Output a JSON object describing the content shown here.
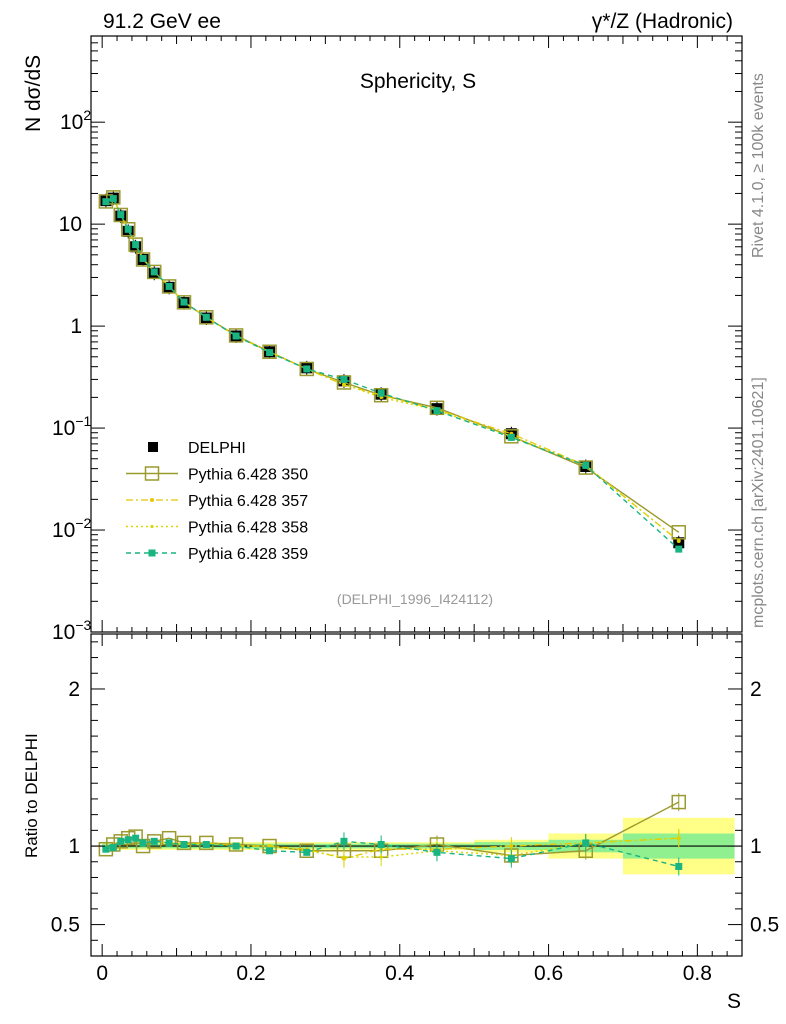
{
  "header": {
    "left_label": "91.2 GeV ee",
    "right_label": "γ*/Z (Hadronic)"
  },
  "side_labels": {
    "rivet": "Rivet 4.1.0, ≥ 100k events",
    "mcplots": "mcplots.cern.ch [arXiv:2401.10621]"
  },
  "colors": {
    "data": "#000000",
    "p350": "#9a9a2e",
    "p357": "#e6c800",
    "p358": "#d8d800",
    "p359": "#18b482",
    "band_yellow": "#ffff88",
    "band_green": "#90f090"
  },
  "chart_data": [
    {
      "type": "line",
      "title": "Sphericity, S",
      "ylabel": "N  dσ/dS",
      "yscale": "log",
      "xlim": [
        -0.015,
        0.86
      ],
      "ylim": [
        0.001,
        700
      ],
      "y_ticks": [
        {
          "value": 0.001,
          "base": "10",
          "exp": "−3"
        },
        {
          "value": 0.01,
          "base": "10",
          "exp": "−2"
        },
        {
          "value": 0.1,
          "base": "10",
          "exp": "−1"
        },
        {
          "value": 1,
          "base": "1",
          "exp": ""
        },
        {
          "value": 10,
          "base": "10",
          "exp": ""
        },
        {
          "value": 100,
          "base": "10",
          "exp": "2"
        }
      ],
      "reference_label": "(DELPHI_1996_I424112)",
      "x": [
        0.005,
        0.015,
        0.025,
        0.035,
        0.045,
        0.055,
        0.07,
        0.09,
        0.11,
        0.14,
        0.18,
        0.225,
        0.275,
        0.325,
        0.375,
        0.45,
        0.55,
        0.65,
        0.775
      ],
      "series": [
        {
          "name": "DELPHI",
          "style": "data",
          "values": [
            17.0,
            18.0,
            12.0,
            8.5,
            6.0,
            4.5,
            3.3,
            2.4,
            1.7,
            1.2,
            0.8,
            0.56,
            0.39,
            0.29,
            0.215,
            0.155,
            0.088,
            0.042,
            0.0075
          ]
        },
        {
          "name": "Pythia 6.428 350",
          "style": "open-square-solid",
          "values": [
            16.7,
            18.3,
            12.3,
            8.9,
            6.3,
            4.5,
            3.4,
            2.45,
            1.71,
            1.22,
            0.81,
            0.56,
            0.38,
            0.28,
            0.21,
            0.158,
            0.083,
            0.041,
            0.0095
          ]
        },
        {
          "name": "Pythia 6.428 357",
          "style": "dash-dot",
          "values": [
            16.8,
            17.8,
            12.4,
            8.8,
            6.2,
            4.6,
            3.4,
            2.45,
            1.72,
            1.22,
            0.8,
            0.56,
            0.38,
            0.265,
            0.21,
            0.152,
            0.088,
            0.043,
            0.0078
          ]
        },
        {
          "name": "Pythia 6.428 358",
          "style": "dotted",
          "values": [
            16.9,
            17.9,
            12.4,
            8.8,
            6.2,
            4.6,
            3.4,
            2.45,
            1.72,
            1.22,
            0.8,
            0.56,
            0.38,
            0.27,
            0.2,
            0.15,
            0.083,
            0.043,
            0.0078
          ]
        },
        {
          "name": "Pythia 6.428 359",
          "style": "dashed-square",
          "values": [
            16.6,
            17.8,
            12.4,
            8.9,
            6.3,
            4.6,
            3.4,
            2.45,
            1.72,
            1.22,
            0.8,
            0.55,
            0.38,
            0.3,
            0.22,
            0.148,
            0.081,
            0.043,
            0.0065
          ]
        }
      ]
    },
    {
      "type": "line",
      "ylabel": "Ratio to DELPHI",
      "xlabel": "S",
      "xlim": [
        -0.015,
        0.86
      ],
      "ylim": [
        0.3,
        2.35
      ],
      "x_ticks": [
        0,
        0.2,
        0.4,
        0.6,
        0.8
      ],
      "x_tick_labels": [
        "0",
        "0.2",
        "0.4",
        "0.6",
        "0.8"
      ],
      "y_ticks": [
        0.5,
        1,
        2
      ],
      "y_tick_labels": [
        "0.5",
        "1",
        "2"
      ],
      "bands": [
        {
          "x0": 0.0,
          "x1": 0.5,
          "yellow": 0.025,
          "green": 0.015
        },
        {
          "x0": 0.5,
          "x1": 0.6,
          "yellow": 0.04,
          "green": 0.025
        },
        {
          "x0": 0.6,
          "x1": 0.7,
          "yellow": 0.08,
          "green": 0.04
        },
        {
          "x0": 0.7,
          "x1": 0.85,
          "yellow": 0.18,
          "green": 0.08
        }
      ],
      "series": [
        {
          "name": "Pythia 6.428 350",
          "style": "open-square-solid",
          "values": [
            0.98,
            1.01,
            1.03,
            1.05,
            1.06,
            1.0,
            1.03,
            1.05,
            1.02,
            1.02,
            1.01,
            1.0,
            0.97,
            0.97,
            0.97,
            1.01,
            0.94,
            0.97,
            1.28
          ]
        },
        {
          "name": "Pythia 6.428 357",
          "style": "dash-dot",
          "values": [
            0.99,
            0.99,
            1.03,
            1.04,
            1.04,
            1.02,
            1.03,
            1.02,
            1.01,
            1.02,
            1.0,
            1.0,
            0.98,
            0.92,
            0.98,
            0.98,
            1.0,
            1.02,
            1.05
          ]
        },
        {
          "name": "Pythia 6.428 358",
          "style": "dotted",
          "values": [
            0.99,
            0.99,
            1.03,
            1.04,
            1.04,
            1.02,
            1.03,
            1.02,
            1.01,
            1.02,
            1.0,
            1.0,
            0.97,
            0.93,
            0.93,
            0.97,
            0.94,
            1.02,
            1.05
          ]
        },
        {
          "name": "Pythia 6.428 359",
          "style": "dashed-square",
          "values": [
            0.98,
            0.99,
            1.03,
            1.04,
            1.05,
            1.02,
            1.03,
            1.02,
            1.01,
            1.01,
            1.0,
            0.97,
            0.96,
            1.03,
            1.01,
            0.96,
            0.92,
            1.02,
            0.87
          ]
        }
      ]
    }
  ]
}
